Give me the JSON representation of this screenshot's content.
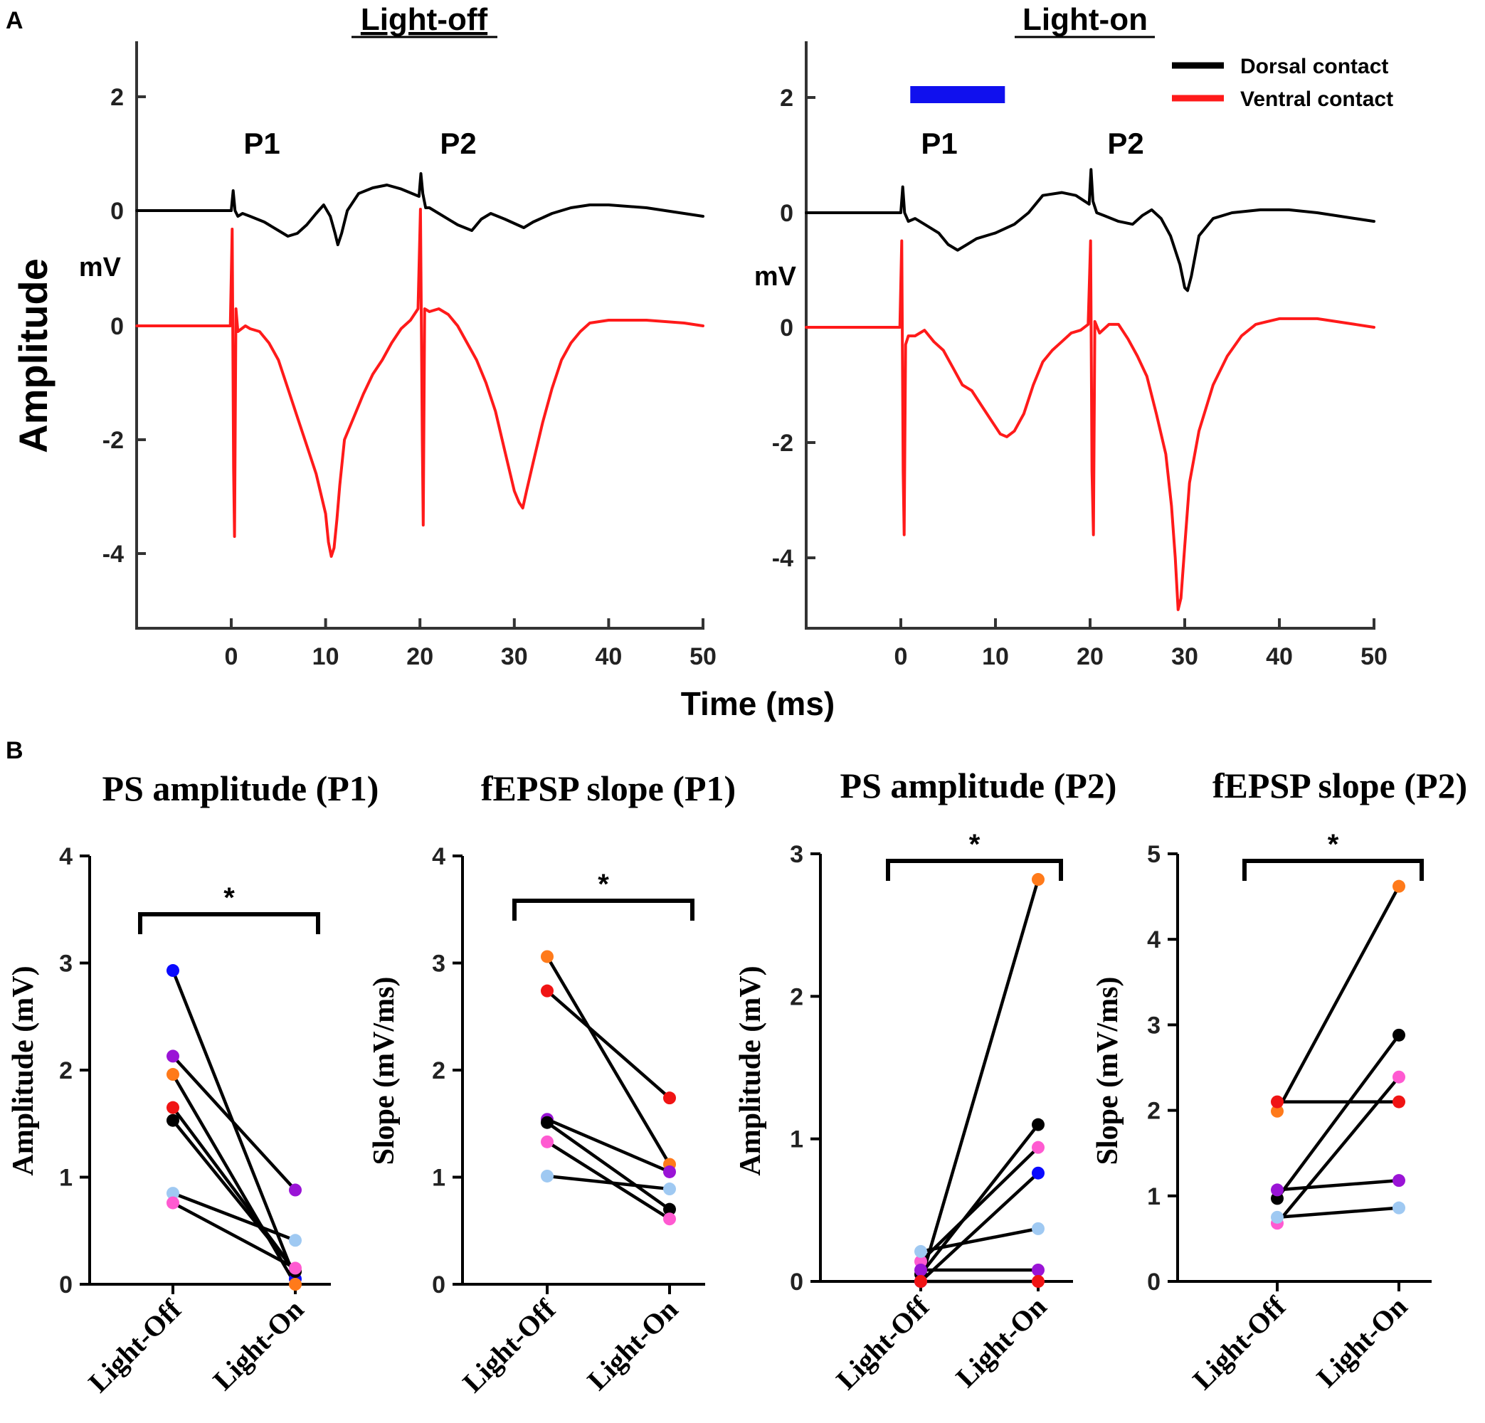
{
  "panel_a": {
    "letter": "A",
    "y_axis_label": "Amplitude",
    "x_axis_label": "Time (ms)",
    "unit_label": "mV",
    "legend": [
      {
        "label": "Dorsal contact",
        "color": "#000000"
      },
      {
        "label": "Ventral contact",
        "color": "#ff1a1a"
      }
    ],
    "stim_bar_color": "#1010ee"
  },
  "panel_b": {
    "letter": "B",
    "significance_label": "*"
  },
  "chart_data": [
    {
      "type": "line",
      "title": "Light-off",
      "xlabel": "Time (ms)",
      "ylabel": "Amplitude (mV)",
      "xlim": [
        -10,
        50
      ],
      "x_ticks": [
        "0",
        "10",
        "20",
        "30",
        "40",
        "50"
      ],
      "dorsal_ticks": [
        "2",
        "0"
      ],
      "ventral_ticks": [
        "0",
        "-2",
        "-4"
      ],
      "annotations": [
        "P1",
        "P2"
      ],
      "series": [
        {
          "name": "Dorsal contact",
          "color": "#000000",
          "points": [
            [
              -10,
              0
            ],
            [
              -5,
              0
            ],
            [
              0,
              0
            ],
            [
              0.2,
              0.35
            ],
            [
              0.4,
              0
            ],
            [
              0.7,
              -0.1
            ],
            [
              1.2,
              -0.05
            ],
            [
              2,
              -0.1
            ],
            [
              3.5,
              -0.2
            ],
            [
              5,
              -0.35
            ],
            [
              6,
              -0.45
            ],
            [
              7,
              -0.4
            ],
            [
              8,
              -0.25
            ],
            [
              9,
              -0.05
            ],
            [
              9.8,
              0.1
            ],
            [
              10.5,
              -0.1
            ],
            [
              11,
              -0.4
            ],
            [
              11.3,
              -0.6
            ],
            [
              11.7,
              -0.4
            ],
            [
              12.3,
              0
            ],
            [
              13.5,
              0.3
            ],
            [
              15,
              0.4
            ],
            [
              16.5,
              0.45
            ],
            [
              18,
              0.38
            ],
            [
              19.9,
              0.25
            ],
            [
              20.1,
              0.65
            ],
            [
              20.3,
              0.3
            ],
            [
              20.6,
              0.05
            ],
            [
              21,
              0.05
            ],
            [
              22,
              -0.05
            ],
            [
              24,
              -0.25
            ],
            [
              25.5,
              -0.35
            ],
            [
              26.5,
              -0.15
            ],
            [
              27.5,
              -0.05
            ],
            [
              29,
              -0.15
            ],
            [
              31,
              -0.3
            ],
            [
              32,
              -0.2
            ],
            [
              34,
              -0.05
            ],
            [
              36,
              0.05
            ],
            [
              38,
              0.1
            ],
            [
              40,
              0.1
            ],
            [
              44,
              0.05
            ],
            [
              48,
              -0.05
            ],
            [
              50,
              -0.1
            ]
          ]
        },
        {
          "name": "Ventral contact",
          "color": "#ff1a1a",
          "points": [
            [
              -10,
              0
            ],
            [
              -5,
              0
            ],
            [
              -0.1,
              0
            ],
            [
              0.1,
              1.7
            ],
            [
              0.25,
              -2.5
            ],
            [
              0.35,
              -3.7
            ],
            [
              0.5,
              0.3
            ],
            [
              0.7,
              -0.1
            ],
            [
              1.5,
              0
            ],
            [
              2,
              -0.05
            ],
            [
              3,
              -0.1
            ],
            [
              4,
              -0.3
            ],
            [
              5,
              -0.6
            ],
            [
              6,
              -1.1
            ],
            [
              7,
              -1.6
            ],
            [
              8,
              -2.1
            ],
            [
              9,
              -2.6
            ],
            [
              10,
              -3.3
            ],
            [
              10.3,
              -3.8
            ],
            [
              10.6,
              -4.05
            ],
            [
              10.9,
              -3.9
            ],
            [
              11.2,
              -3.4
            ],
            [
              11.5,
              -2.8
            ],
            [
              12,
              -2.0
            ],
            [
              13,
              -1.6
            ],
            [
              14,
              -1.2
            ],
            [
              15,
              -0.85
            ],
            [
              16,
              -0.6
            ],
            [
              17,
              -0.3
            ],
            [
              18,
              -0.05
            ],
            [
              19,
              0.1
            ],
            [
              19.8,
              0.3
            ],
            [
              20.05,
              2.05
            ],
            [
              20.25,
              -2.0
            ],
            [
              20.35,
              -3.5
            ],
            [
              20.5,
              0.3
            ],
            [
              21,
              0.25
            ],
            [
              22,
              0.3
            ],
            [
              23,
              0.2
            ],
            [
              24,
              0
            ],
            [
              25,
              -0.3
            ],
            [
              26,
              -0.6
            ],
            [
              27,
              -1.0
            ],
            [
              28,
              -1.5
            ],
            [
              29,
              -2.2
            ],
            [
              30,
              -2.9
            ],
            [
              30.5,
              -3.1
            ],
            [
              30.9,
              -3.2
            ],
            [
              31.3,
              -2.9
            ],
            [
              32,
              -2.4
            ],
            [
              33,
              -1.7
            ],
            [
              34,
              -1.1
            ],
            [
              35,
              -0.6
            ],
            [
              36,
              -0.3
            ],
            [
              37,
              -0.1
            ],
            [
              38,
              0.05
            ],
            [
              40,
              0.1
            ],
            [
              44,
              0.1
            ],
            [
              48,
              0.05
            ],
            [
              50,
              0
            ]
          ]
        }
      ]
    },
    {
      "type": "line",
      "title": "Light-on",
      "xlabel": "Time (ms)",
      "ylabel": "Amplitude (mV)",
      "xlim": [
        -10,
        50
      ],
      "x_ticks": [
        "0",
        "10",
        "20",
        "30",
        "40",
        "50"
      ],
      "dorsal_ticks": [
        "2",
        "0"
      ],
      "ventral_ticks": [
        "0",
        "-2",
        "-4"
      ],
      "annotations": [
        "P1",
        "P2"
      ],
      "light_stimulus_ms": [
        1,
        11
      ],
      "series": [
        {
          "name": "Dorsal contact",
          "color": "#000000",
          "points": [
            [
              -10,
              0
            ],
            [
              -5,
              0
            ],
            [
              0,
              0
            ],
            [
              0.2,
              0.45
            ],
            [
              0.4,
              0
            ],
            [
              0.8,
              -0.15
            ],
            [
              1.5,
              -0.1
            ],
            [
              2.5,
              -0.2
            ],
            [
              4,
              -0.35
            ],
            [
              5,
              -0.55
            ],
            [
              6,
              -0.65
            ],
            [
              7,
              -0.55
            ],
            [
              8,
              -0.45
            ],
            [
              10,
              -0.35
            ],
            [
              12,
              -0.2
            ],
            [
              13.5,
              0
            ],
            [
              15,
              0.3
            ],
            [
              17,
              0.35
            ],
            [
              18.5,
              0.3
            ],
            [
              19.9,
              0.15
            ],
            [
              20.1,
              0.75
            ],
            [
              20.3,
              0.2
            ],
            [
              20.7,
              0
            ],
            [
              21.5,
              -0.05
            ],
            [
              23,
              -0.15
            ],
            [
              24.5,
              -0.2
            ],
            [
              25.5,
              -0.05
            ],
            [
              26.5,
              0.05
            ],
            [
              27.5,
              -0.1
            ],
            [
              28.5,
              -0.4
            ],
            [
              29.5,
              -0.9
            ],
            [
              30,
              -1.3
            ],
            [
              30.3,
              -1.35
            ],
            [
              30.7,
              -1.1
            ],
            [
              31.5,
              -0.4
            ],
            [
              33,
              -0.1
            ],
            [
              35,
              0
            ],
            [
              38,
              0.05
            ],
            [
              41,
              0.05
            ],
            [
              44,
              0
            ],
            [
              48,
              -0.1
            ],
            [
              50,
              -0.15
            ]
          ]
        },
        {
          "name": "Ventral contact",
          "color": "#ff1a1a",
          "points": [
            [
              -10,
              0
            ],
            [
              -5,
              0
            ],
            [
              -0.1,
              0
            ],
            [
              0.1,
              1.5
            ],
            [
              0.25,
              -2.5
            ],
            [
              0.35,
              -3.6
            ],
            [
              0.5,
              -0.3
            ],
            [
              0.8,
              -0.15
            ],
            [
              1.5,
              -0.15
            ],
            [
              2.5,
              -0.05
            ],
            [
              3.5,
              -0.25
            ],
            [
              4.5,
              -0.4
            ],
            [
              5.5,
              -0.7
            ],
            [
              6.5,
              -1.0
            ],
            [
              7.5,
              -1.1
            ],
            [
              8.5,
              -1.35
            ],
            [
              9.5,
              -1.6
            ],
            [
              10.5,
              -1.85
            ],
            [
              11.2,
              -1.9
            ],
            [
              12,
              -1.8
            ],
            [
              13,
              -1.5
            ],
            [
              14,
              -1.0
            ],
            [
              15,
              -0.6
            ],
            [
              16,
              -0.4
            ],
            [
              17,
              -0.25
            ],
            [
              18,
              -0.1
            ],
            [
              19,
              -0.05
            ],
            [
              19.8,
              0.05
            ],
            [
              20.05,
              1.5
            ],
            [
              20.2,
              -2.5
            ],
            [
              20.35,
              -3.6
            ],
            [
              20.5,
              0.1
            ],
            [
              21,
              -0.1
            ],
            [
              22,
              0.05
            ],
            [
              23,
              0.05
            ],
            [
              24,
              -0.2
            ],
            [
              25,
              -0.5
            ],
            [
              26,
              -0.85
            ],
            [
              27,
              -1.5
            ],
            [
              28,
              -2.2
            ],
            [
              28.6,
              -3.1
            ],
            [
              29,
              -4.0
            ],
            [
              29.3,
              -4.9
            ],
            [
              29.6,
              -4.7
            ],
            [
              30,
              -3.8
            ],
            [
              30.5,
              -2.7
            ],
            [
              31.5,
              -1.8
            ],
            [
              33,
              -1.0
            ],
            [
              34.5,
              -0.5
            ],
            [
              36,
              -0.15
            ],
            [
              37.5,
              0.05
            ],
            [
              40,
              0.15
            ],
            [
              44,
              0.15
            ],
            [
              48,
              0.05
            ],
            [
              50,
              0
            ]
          ]
        }
      ]
    },
    {
      "type": "scatter",
      "title": "PS amplitude (P1)",
      "ylabel": "Amplitude (mV)",
      "categories": [
        "Light-Off",
        "Light-On"
      ],
      "ylim": [
        0,
        4
      ],
      "y_ticks": [
        "0",
        "1",
        "2",
        "3",
        "4"
      ],
      "significance": "*",
      "pairs": [
        {
          "color": "#0a0aff",
          "values": [
            2.93,
            0.05
          ]
        },
        {
          "color": "#9a14d6",
          "values": [
            2.13,
            0.88
          ]
        },
        {
          "color": "#ff7a1a",
          "values": [
            1.96,
            0.0
          ]
        },
        {
          "color": "#f01414",
          "values": [
            1.65,
            0.12
          ]
        },
        {
          "color": "#000000",
          "values": [
            1.53,
            0.12
          ]
        },
        {
          "color": "#9fc9f2",
          "values": [
            0.85,
            0.41
          ]
        },
        {
          "color": "#ff5ad1",
          "values": [
            0.76,
            0.15
          ]
        }
      ]
    },
    {
      "type": "scatter",
      "title": "fEPSP slope (P1)",
      "ylabel": "Slope (mV/ms)",
      "categories": [
        "Light-Off",
        "Light-On"
      ],
      "ylim": [
        0,
        4
      ],
      "y_ticks": [
        "0",
        "1",
        "2",
        "3",
        "4"
      ],
      "significance": "*",
      "pairs": [
        {
          "color": "#ff7a1a",
          "values": [
            3.06,
            1.12
          ]
        },
        {
          "color": "#f01414",
          "values": [
            2.74,
            1.74
          ]
        },
        {
          "color": "#9a14d6",
          "values": [
            1.54,
            1.05
          ]
        },
        {
          "color": "#000000",
          "values": [
            1.51,
            0.7
          ]
        },
        {
          "color": "#ff5ad1",
          "values": [
            1.33,
            0.61
          ]
        },
        {
          "color": "#9fc9f2",
          "values": [
            1.01,
            0.89
          ]
        }
      ]
    },
    {
      "type": "scatter",
      "title": "PS amplitude (P2)",
      "ylabel": "Amplitude (mV)",
      "categories": [
        "Light-Off",
        "Light-On"
      ],
      "ylim": [
        0,
        3
      ],
      "y_ticks": [
        "0",
        "1",
        "2",
        "3"
      ],
      "significance": "*",
      "pairs": [
        {
          "color": "#ff7a1a",
          "values": [
            0.0,
            2.82
          ]
        },
        {
          "color": "#000000",
          "values": [
            0.05,
            1.1
          ]
        },
        {
          "color": "#ff5ad1",
          "values": [
            0.14,
            0.94
          ]
        },
        {
          "color": "#0a0aff",
          "values": [
            0.0,
            0.76
          ]
        },
        {
          "color": "#9fc9f2",
          "values": [
            0.21,
            0.37
          ]
        },
        {
          "color": "#9a14d6",
          "values": [
            0.08,
            0.08
          ]
        },
        {
          "color": "#f01414",
          "values": [
            0.0,
            0.0
          ]
        }
      ]
    },
    {
      "type": "scatter",
      "title": "fEPSP slope (P2)",
      "ylabel": "Slope (mV/ms)",
      "categories": [
        "Light-Off",
        "Light-On"
      ],
      "ylim": [
        0,
        5
      ],
      "y_ticks": [
        "0",
        "1",
        "2",
        "3",
        "4",
        "5"
      ],
      "significance": "*",
      "pairs": [
        {
          "color": "#ff7a1a",
          "values": [
            1.99,
            4.62
          ]
        },
        {
          "color": "#000000",
          "values": [
            0.97,
            2.88
          ]
        },
        {
          "color": "#f01414",
          "values": [
            2.1,
            2.1
          ]
        },
        {
          "color": "#ff5ad1",
          "values": [
            0.68,
            2.39
          ]
        },
        {
          "color": "#9a14d6",
          "values": [
            1.07,
            1.18
          ]
        },
        {
          "color": "#9fc9f2",
          "values": [
            0.75,
            0.86
          ]
        }
      ]
    }
  ]
}
